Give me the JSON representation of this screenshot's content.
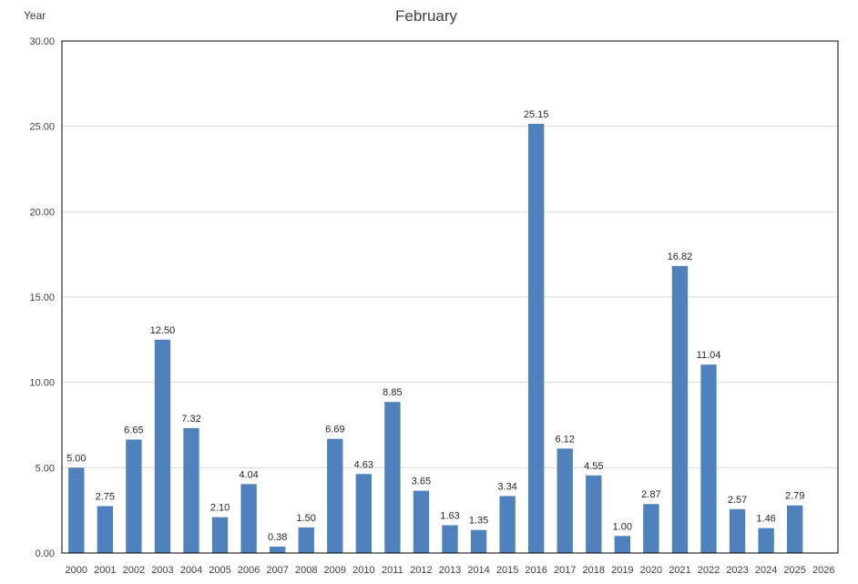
{
  "chart_data": {
    "type": "bar",
    "title": "February",
    "corner_label": "Year",
    "xlabel": "",
    "ylabel": "",
    "categories": [
      "2000",
      "2001",
      "2002",
      "2003",
      "2004",
      "2005",
      "2006",
      "2007",
      "2008",
      "2009",
      "2010",
      "2011",
      "2012",
      "2013",
      "2014",
      "2015",
      "2016",
      "2017",
      "2018",
      "2019",
      "2020",
      "2021",
      "2022",
      "2023",
      "2024",
      "2025",
      "2026"
    ],
    "values": [
      5.0,
      2.75,
      6.65,
      12.5,
      7.32,
      2.1,
      4.04,
      0.38,
      1.5,
      6.69,
      4.63,
      8.85,
      3.65,
      1.63,
      1.35,
      3.34,
      25.15,
      6.12,
      4.55,
      1.0,
      2.87,
      16.82,
      11.04,
      2.57,
      1.46,
      2.79,
      null
    ],
    "data_labels": [
      "5.00",
      "2.75",
      "6.65",
      "12.50",
      "7.32",
      "2.10",
      "4.04",
      "0.38",
      "1.50",
      "6.69",
      "4.63",
      "8.85",
      "3.65",
      "1.63",
      "1.35",
      "3.34",
      "25.15",
      "6.12",
      "4.55",
      "1.00",
      "2.87",
      "16.82",
      "11.04",
      "2.57",
      "1.46",
      "2.79",
      ""
    ],
    "y_ticks": [
      "0.00",
      "5.00",
      "10.00",
      "15.00",
      "20.00",
      "25.00",
      "30.00"
    ],
    "ylim": [
      0,
      30
    ],
    "grid": true,
    "legend": "none",
    "colors": {
      "bar": "#4f81bd",
      "grid": "#d9d9d9",
      "frame": "#000000",
      "text": "#404040"
    }
  }
}
